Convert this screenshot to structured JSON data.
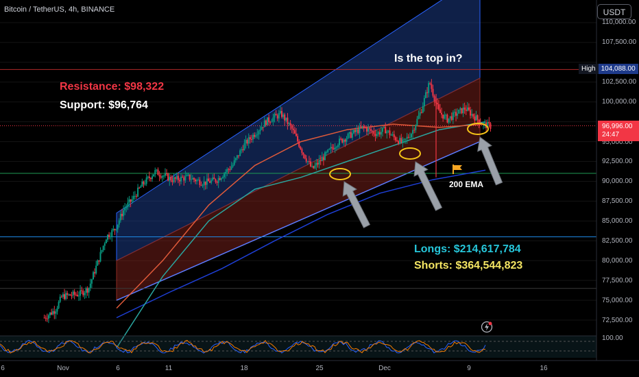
{
  "header": {
    "symbol": "Bitcoin / TetherUS, 4h, BINANCE",
    "currency": "USDT"
  },
  "annotations": {
    "resistance": "Resistance: $98,322",
    "support": "Support: $96,764",
    "question": "Is the top in?",
    "ema": "200 EMA",
    "longs": "Longs: $214,617,784",
    "shorts": "Shorts: $364,544,823"
  },
  "price_axis": {
    "ticks": [
      "110,000.00",
      "107,500.00",
      "102,500.00",
      "100,000.00",
      "95,000.00",
      "92,500.00",
      "90,000.00",
      "87,500.00",
      "85,000.00",
      "82,500.00",
      "80,000.00",
      "77,500.00",
      "75,000.00",
      "72,500.00"
    ],
    "high_label": "High",
    "high_value": "104,088.00",
    "current_price": "96,996.00",
    "countdown": "24:47"
  },
  "oscillator": {
    "tick": "100.00"
  },
  "chart_data": {
    "type": "candlestick",
    "title": "Bitcoin / TetherUS, 4h, BINANCE",
    "ylim": [
      70500,
      112000
    ],
    "x_ticks": [
      "6",
      "Nov",
      "6",
      "11",
      "18",
      "25",
      "Dec",
      "9",
      "16"
    ],
    "horizontal_levels": {
      "resistance": 98322,
      "support": 96764,
      "high": 104088,
      "current": 96996,
      "level_green": 91000,
      "level_blue": 83000,
      "level_gray": 76500
    },
    "series": [
      {
        "name": "200 EMA",
        "values": [
          72800,
          76000,
          79000,
          82500,
          85800,
          88500,
          90200,
          91400
        ]
      },
      {
        "values": [
          69000,
          78000,
          85000,
          89000,
          90500,
          92500,
          94500,
          96500,
          97500
        ]
      },
      {
        "values": [
          74000,
          80000,
          87000,
          92000,
          95000,
          96500,
          97200,
          96800,
          97200
        ]
      }
    ],
    "close_path": [
      72800,
      73800,
      75500,
      75800,
      76500,
      80500,
      83000,
      84000,
      86500,
      87800,
      89500,
      91200,
      90200,
      90500,
      89800,
      90200,
      92000,
      94500,
      96000,
      97500,
      98500,
      96500,
      93500,
      91500,
      93000,
      94800,
      95800,
      96800,
      96000,
      96500,
      95500,
      94800,
      96200,
      98800,
      102500,
      98800,
      97800,
      98500,
      99200,
      98200,
      97200,
      96900
    ],
    "x_positions": [
      0.2,
      0.25,
      0.28,
      0.36,
      0.4,
      0.45,
      0.48,
      0.52,
      0.56,
      0.6,
      0.64,
      0.7,
      0.78,
      0.85,
      0.92,
      0.98,
      1.05,
      1.1,
      1.15,
      1.2,
      1.27,
      1.32,
      1.37,
      1.41,
      1.46,
      1.52,
      1.58,
      1.64,
      1.7,
      1.74,
      1.78,
      1.82,
      1.86,
      1.9,
      1.94,
      1.98,
      2.02,
      2.06,
      2.1,
      2.14,
      2.18,
      2.22
    ],
    "price_channel": {
      "upper_top": [
        86000,
        116000
      ],
      "middle": [
        80000,
        103000
      ],
      "lower": [
        75000,
        95000
      ]
    }
  }
}
